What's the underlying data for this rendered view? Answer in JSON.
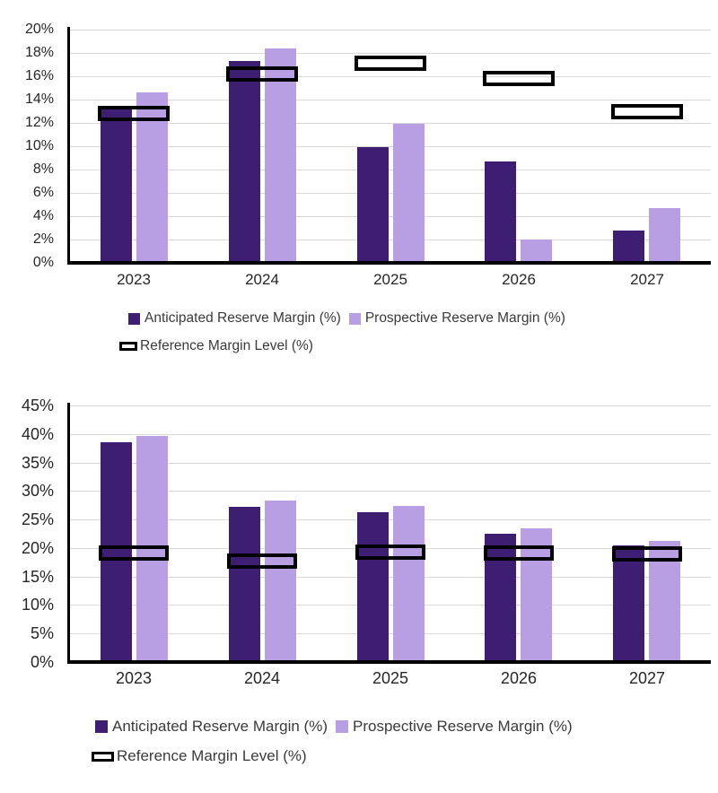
{
  "colors": {
    "anticipated": "#3E1E72",
    "prospective": "#B89FE3",
    "reference_outline": "#000000",
    "gridline": "#D9D9D9",
    "axis": "#000000",
    "tick_text": "#262626",
    "legend_text": "#3A3A3A",
    "background": "#FFFFFF"
  },
  "chart_data": [
    {
      "type": "bar",
      "title": "",
      "xlabel": "",
      "ylabel": "",
      "categories": [
        "2023",
        "2024",
        "2025",
        "2026",
        "2027"
      ],
      "series": [
        {
          "name": "Anticipated Reserve Margin (%)",
          "color": "#3E1E72",
          "values": [
            13.2,
            17.3,
            9.9,
            8.7,
            2.8
          ]
        },
        {
          "name": "Prospective Reserve Margin (%)",
          "color": "#B89FE3",
          "values": [
            14.6,
            18.4,
            11.9,
            2.0,
            4.7
          ]
        }
      ],
      "reference": {
        "name": "Reference Margin Level (%)",
        "marker": "black-outlined-box",
        "values": [
          12.8,
          16.2,
          17.1,
          15.8,
          13.0
        ]
      },
      "ylim": [
        0,
        20
      ],
      "ytick_step": 2,
      "ytick_labels": [
        "20%",
        "18%",
        "16%",
        "14%",
        "12%",
        "10%",
        "8%",
        "6%",
        "4%",
        "2%",
        "0%"
      ],
      "grid": true,
      "legend_position": "bottom"
    },
    {
      "type": "bar",
      "title": "",
      "xlabel": "",
      "ylabel": "",
      "categories": [
        "2023",
        "2024",
        "2025",
        "2026",
        "2027"
      ],
      "series": [
        {
          "name": "Anticipated Reserve Margin (%)",
          "color": "#3E1E72",
          "values": [
            38.5,
            27.2,
            26.3,
            22.5,
            20.4
          ]
        },
        {
          "name": "Prospective Reserve Margin (%)",
          "color": "#B89FE3",
          "values": [
            39.6,
            28.3,
            27.3,
            23.5,
            21.3
          ]
        }
      ],
      "reference": {
        "name": "Reference Margin Level (%)",
        "marker": "black-outlined-box",
        "values": [
          19.1,
          17.7,
          19.2,
          19.1,
          18.9
        ]
      },
      "ylim": [
        0,
        45
      ],
      "ytick_step": 5,
      "ytick_labels": [
        "45%",
        "40%",
        "35%",
        "30%",
        "25%",
        "20%",
        "15%",
        "10%",
        "5%",
        "0%"
      ],
      "grid": true,
      "legend_position": "bottom"
    }
  ]
}
